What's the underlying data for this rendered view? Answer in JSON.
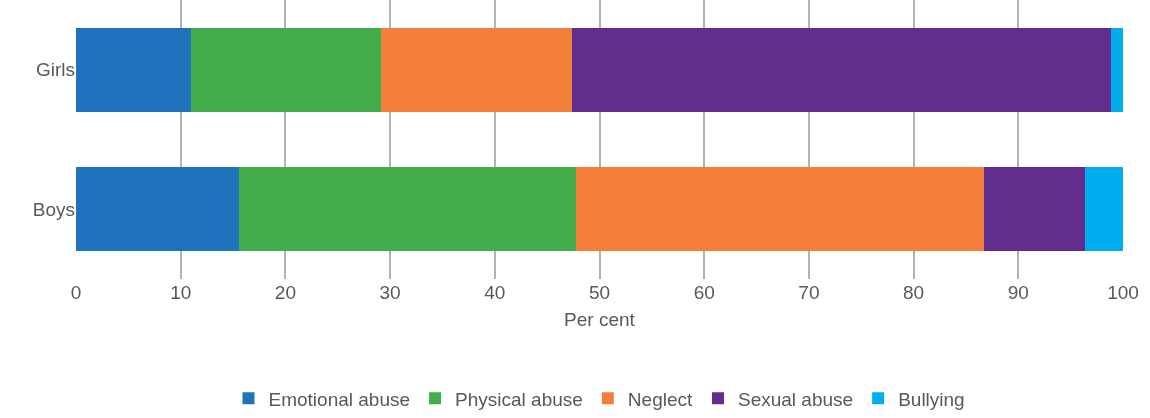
{
  "chart_data": {
    "type": "bar",
    "orientation": "horizontal",
    "stacked": true,
    "categories": [
      "Girls",
      "Boys"
    ],
    "xlabel": "Per cent",
    "xlim": [
      0,
      100
    ],
    "xticks": [
      0,
      10,
      20,
      30,
      40,
      50,
      60,
      70,
      80,
      90,
      100
    ],
    "grid": "x",
    "legend": "bottom",
    "series": [
      {
        "name": "Emotional abuse",
        "color": "#1f72bc",
        "values": [
          11.0,
          15.6
        ]
      },
      {
        "name": "Physical abuse",
        "color": "#42ad4a",
        "values": [
          18.1,
          32.2
        ]
      },
      {
        "name": "Neglect",
        "color": "#f37f3b",
        "values": [
          18.3,
          38.9
        ]
      },
      {
        "name": "Sexual abuse",
        "color": "#632d8d",
        "values": [
          51.5,
          9.7
        ]
      },
      {
        "name": "Bullying",
        "color": "#00aeef",
        "values": [
          1.1,
          3.6
        ]
      }
    ]
  }
}
